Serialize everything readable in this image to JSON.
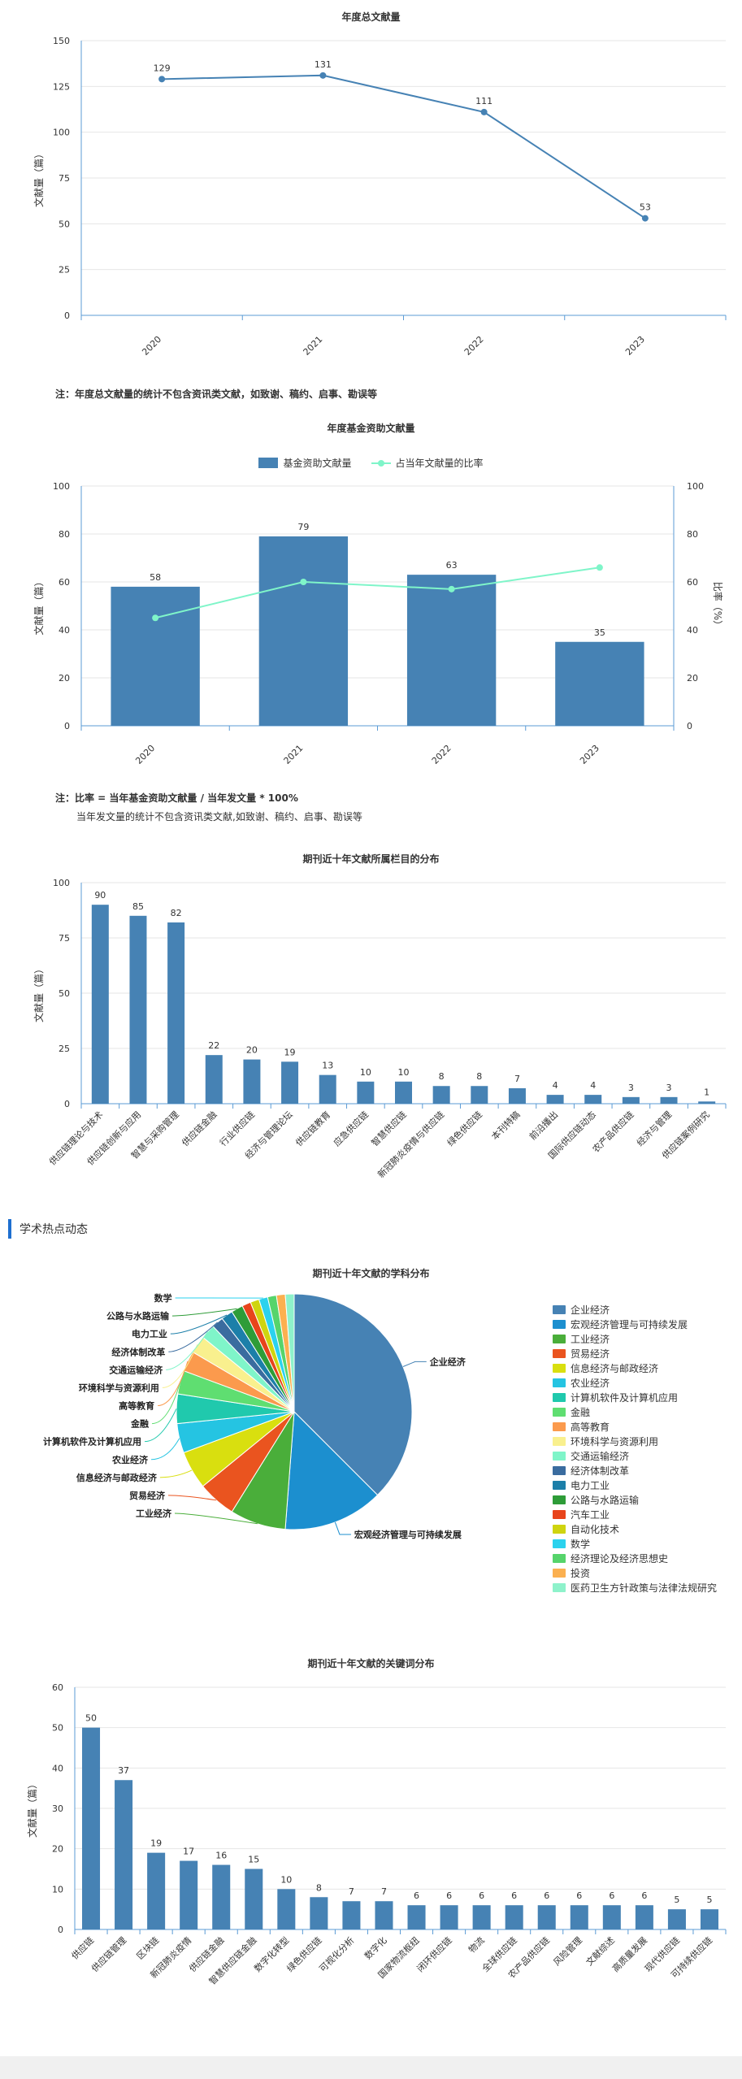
{
  "charts": {
    "line": {
      "title": "年度总文献量",
      "ylabel": "文献量（篇）",
      "note": "注：年度总文献量的统计不包含资讯类文献，如致谢、稿约、启事、勘误等"
    },
    "fund": {
      "title": "年度基金资助文献量",
      "ylabel": "文献量（篇）",
      "y2label": "比率（%）",
      "legend_bar": "基金资助文献量",
      "legend_line": "占当年文献量的比率",
      "note1": "注：比率 = 当年基金资助文献量 / 当年发文量 * 100%",
      "note2": "当年发文量的统计不包含资讯类文献,如致谢、稿约、启事、勘误等"
    },
    "columns": {
      "title": "期刊近十年文献所属栏目的分布",
      "ylabel": "文献量（篇）"
    },
    "section": {
      "title": "学术热点动态"
    },
    "pie": {
      "title": "期刊近十年文献的学科分布"
    },
    "keywords": {
      "title": "期刊近十年文献的关键词分布",
      "ylabel": "文献量（篇）"
    }
  },
  "chart_data": [
    {
      "type": "line",
      "title": "年度总文献量",
      "ylabel": "文献量（篇）",
      "x": [
        "2020",
        "2021",
        "2022",
        "2023"
      ],
      "values": [
        129,
        131,
        111,
        53
      ],
      "yticks": [
        0,
        25,
        50,
        75,
        100,
        125,
        150
      ],
      "ylim": [
        0,
        150
      ],
      "color": "#4682b4"
    },
    {
      "type": "bar",
      "title": "年度基金资助文献量",
      "ylabel": "文献量（篇）",
      "y2label": "比率（%）",
      "categories": [
        "2020",
        "2021",
        "2022",
        "2023"
      ],
      "series": [
        {
          "name": "基金资助文献量",
          "values": [
            58,
            79,
            63,
            35
          ],
          "color": "#4682b4",
          "axis": "left"
        },
        {
          "name": "占当年文献量的比率",
          "values": [
            45,
            60,
            57,
            66
          ],
          "color": "#7ff5c9",
          "axis": "right",
          "type": "line"
        }
      ],
      "yticks": [
        0,
        20,
        40,
        60,
        80,
        100
      ],
      "y2ticks": [
        0,
        20,
        40,
        60,
        80,
        100
      ],
      "ylim": [
        0,
        100
      ],
      "legend": "top-center"
    },
    {
      "type": "bar",
      "title": "期刊近十年文献所属栏目的分布",
      "ylabel": "文献量（篇）",
      "categories": [
        "供应链理论与技术",
        "供应链创新与应用",
        "智慧与采购管理",
        "供应链金融",
        "行业供应链",
        "经济与管理论坛",
        "供应链教育",
        "应急供应链",
        "智慧供应链",
        "新冠肺炎疫情与供应链",
        "绿色供应链",
        "本刊特稿",
        "前沿播出",
        "国际供应链动态",
        "农产品供应链",
        "经济与管理",
        "供应链案例研究"
      ],
      "values": [
        90,
        85,
        82,
        22,
        20,
        19,
        13,
        10,
        10,
        8,
        8,
        7,
        4,
        4,
        3,
        3,
        1
      ],
      "yticks": [
        0,
        25,
        50,
        75,
        100
      ],
      "ylim": [
        0,
        100
      ],
      "color": "#4682b4"
    },
    {
      "type": "pie",
      "title": "期刊近十年文献的学科分布",
      "legend": "right",
      "slices": [
        {
          "label": "企业经济",
          "value": 93,
          "color": "#4682b4"
        },
        {
          "label": "宏观经济管理与可持续发展",
          "value": 34,
          "color": "#1c8fcf"
        },
        {
          "label": "工业经济",
          "value": 19,
          "color": "#4aae3a"
        },
        {
          "label": "贸易经济",
          "value": 13,
          "color": "#ea541f"
        },
        {
          "label": "信息经济与邮政经济",
          "value": 13,
          "color": "#d9df0f"
        },
        {
          "label": "农业经济",
          "value": 10,
          "color": "#25c4e2"
        },
        {
          "label": "计算机软件及计算机应用",
          "value": 10,
          "color": "#20c9ad"
        },
        {
          "label": "金融",
          "value": 8,
          "color": "#5fde71"
        },
        {
          "label": "高等教育",
          "value": 7,
          "color": "#fb9a4d"
        },
        {
          "label": "环境科学与资源利用",
          "value": 6,
          "color": "#f9f08e"
        },
        {
          "label": "交通运输经济",
          "value": 5,
          "color": "#7ff5c9"
        },
        {
          "label": "经济体制改革",
          "value": 4,
          "color": "#3a6c9f"
        },
        {
          "label": "电力工业",
          "value": 4,
          "color": "#1c7fa9"
        },
        {
          "label": "公路与水路运输",
          "value": 4,
          "color": "#2e9c38"
        },
        {
          "label": "汽车工业",
          "value": 3,
          "color": "#e8441b"
        },
        {
          "label": "自动化技术",
          "value": 3,
          "color": "#cfd40f"
        },
        {
          "label": "数学",
          "value": 3,
          "color": "#2bd2ee"
        },
        {
          "label": "经济理论及经济思想史",
          "value": 3,
          "color": "#56d46b"
        },
        {
          "label": "投资",
          "value": 3,
          "color": "#fbb050"
        },
        {
          "label": "医药卫生方针政策与法律法规研究",
          "value": 3,
          "color": "#8ef2cb"
        }
      ],
      "outside_labels": [
        "企业经济",
        "宏观经济管理与可持续发展",
        "工业经济",
        "贸易经济",
        "信息经济与邮政经济",
        "农业经济",
        "计算机软件及计算机应用",
        "金融",
        "高等教育",
        "环境科学与资源利用",
        "交通运输经济",
        "经济体制改革",
        "电力工业",
        "公路与水路运输",
        "数学"
      ]
    },
    {
      "type": "bar",
      "title": "期刊近十年文献的关键词分布",
      "ylabel": "文献量（篇）",
      "categories": [
        "供应链",
        "供应链管理",
        "区块链",
        "新冠肺炎疫情",
        "供应链金融",
        "智慧供应链金融",
        "数字化转型",
        "绿色供应链",
        "可视化分析",
        "数字化",
        "国家物流枢纽",
        "闭环供应链",
        "物流",
        "全球供应链",
        "农产品供应链",
        "风险管理",
        "文献综述",
        "高质量发展",
        "现代供应链",
        "可持续供应链"
      ],
      "values": [
        50,
        37,
        19,
        17,
        16,
        15,
        10,
        8,
        7,
        7,
        6,
        6,
        6,
        6,
        6,
        6,
        6,
        6,
        5,
        5
      ],
      "yticks": [
        0,
        10,
        20,
        30,
        40,
        50,
        60
      ],
      "ylim": [
        0,
        60
      ],
      "color": "#4682b4"
    }
  ]
}
